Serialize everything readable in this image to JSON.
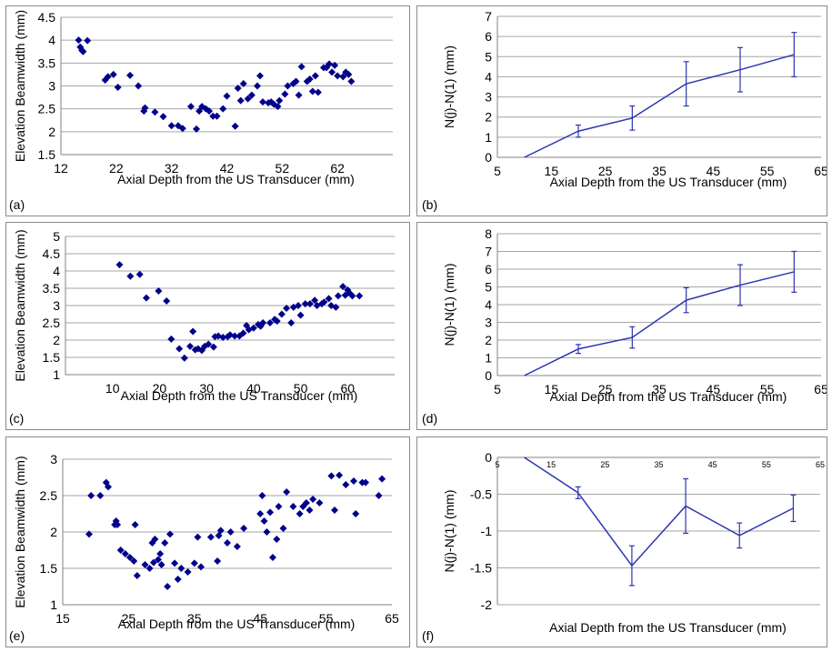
{
  "colors": {
    "series": "#00008b",
    "line": "#2b35b0",
    "grid": "#a6a6a6"
  },
  "chart_data": [
    {
      "panel_label": "(a)",
      "type": "scatter",
      "xlabel": "Axial Depth from the US Transducer (mm)",
      "ylabel": "Elevation Beamwidth (mm)",
      "xlim": [
        12,
        72
      ],
      "ylim": [
        1.5,
        4.5
      ],
      "xticks": [
        "12",
        "22",
        "32",
        "42",
        "52",
        "62"
      ],
      "yticks": [
        "1.5",
        "2",
        "2.5",
        "3",
        "3.5",
        "4",
        "4.5"
      ],
      "grid": "horizontal",
      "points": [
        [
          15.2,
          4.0
        ],
        [
          15.5,
          3.85
        ],
        [
          15.8,
          3.78
        ],
        [
          16.0,
          3.75
        ],
        [
          16.8,
          3.99
        ],
        [
          20.0,
          3.13
        ],
        [
          20.5,
          3.2
        ],
        [
          21.5,
          3.25
        ],
        [
          22.3,
          2.97
        ],
        [
          24.5,
          3.23
        ],
        [
          26.0,
          3.0
        ],
        [
          27.0,
          2.45
        ],
        [
          27.2,
          2.52
        ],
        [
          29.0,
          2.43
        ],
        [
          30.5,
          2.33
        ],
        [
          32.0,
          2.13
        ],
        [
          33.2,
          2.13
        ],
        [
          34.0,
          2.07
        ],
        [
          35.5,
          2.55
        ],
        [
          36.5,
          2.06
        ],
        [
          37.0,
          2.45
        ],
        [
          37.5,
          2.55
        ],
        [
          38.2,
          2.5
        ],
        [
          38.8,
          2.45
        ],
        [
          39.5,
          2.34
        ],
        [
          40.2,
          2.34
        ],
        [
          41.3,
          2.5
        ],
        [
          42.0,
          2.78
        ],
        [
          43.5,
          2.12
        ],
        [
          44.0,
          2.95
        ],
        [
          44.5,
          2.68
        ],
        [
          45.0,
          3.05
        ],
        [
          45.8,
          2.72
        ],
        [
          46.5,
          2.8
        ],
        [
          47.5,
          3.0
        ],
        [
          48.0,
          3.22
        ],
        [
          48.5,
          2.65
        ],
        [
          49.5,
          2.63
        ],
        [
          50.0,
          2.65
        ],
        [
          50.5,
          2.6
        ],
        [
          51.2,
          2.55
        ],
        [
          51.5,
          2.68
        ],
        [
          52.5,
          2.82
        ],
        [
          53.0,
          3.0
        ],
        [
          54.0,
          3.05
        ],
        [
          54.5,
          3.1
        ],
        [
          55.0,
          2.8
        ],
        [
          55.5,
          3.42
        ],
        [
          56.5,
          3.1
        ],
        [
          57.0,
          3.15
        ],
        [
          57.5,
          2.88
        ],
        [
          58.0,
          3.22
        ],
        [
          58.5,
          2.86
        ],
        [
          59.5,
          3.4
        ],
        [
          60.0,
          3.4
        ],
        [
          60.5,
          3.48
        ],
        [
          61.0,
          3.3
        ],
        [
          61.5,
          3.45
        ],
        [
          62.0,
          3.22
        ],
        [
          63.0,
          3.2
        ],
        [
          63.5,
          3.3
        ],
        [
          64.0,
          3.25
        ],
        [
          64.5,
          3.1
        ]
      ]
    },
    {
      "panel_label": "(b)",
      "type": "line",
      "xlabel": "Axial Depth from the US Transducer (mm)",
      "ylabel": "N(j)-N(1) (mm)",
      "xlim": [
        5,
        65
      ],
      "ylim": [
        0,
        7
      ],
      "xticks": [
        "5",
        "15",
        "25",
        "35",
        "45",
        "55",
        "65"
      ],
      "yticks": [
        "0",
        "1",
        "2",
        "3",
        "4",
        "5",
        "6",
        "7"
      ],
      "grid": "horizontal",
      "x": [
        10,
        20,
        30,
        40,
        50,
        60
      ],
      "y": [
        0,
        1.3,
        1.95,
        3.65,
        4.35,
        5.1
      ],
      "error": [
        0,
        0.3,
        0.6,
        1.1,
        1.1,
        1.1
      ]
    },
    {
      "panel_label": "(c)",
      "type": "scatter",
      "xlabel": "Axial Depth from the US Transducer (mm)",
      "ylabel": "Elevation Beamwidth (mm)",
      "xlim": [
        0,
        70
      ],
      "ylim": [
        1,
        5
      ],
      "xticks": [
        "10",
        "20",
        "30",
        "40",
        "50",
        "60"
      ],
      "yticks": [
        "1",
        "1.5",
        "2",
        "2.5",
        "3",
        "3.5",
        "4",
        "4.5",
        "5"
      ],
      "grid": "horizontal",
      "points": [
        [
          11.5,
          4.18
        ],
        [
          13.8,
          3.85
        ],
        [
          15.8,
          3.9
        ],
        [
          17.2,
          3.22
        ],
        [
          19.8,
          3.42
        ],
        [
          21.5,
          3.13
        ],
        [
          22.5,
          2.03
        ],
        [
          24.2,
          1.75
        ],
        [
          25.3,
          1.48
        ],
        [
          26.5,
          1.82
        ],
        [
          27.1,
          2.25
        ],
        [
          27.6,
          1.72
        ],
        [
          28.2,
          1.75
        ],
        [
          29.0,
          1.7
        ],
        [
          29.6,
          1.82
        ],
        [
          30.4,
          1.88
        ],
        [
          31.5,
          1.8
        ],
        [
          31.8,
          2.1
        ],
        [
          32.5,
          2.12
        ],
        [
          33.5,
          2.08
        ],
        [
          34.5,
          2.1
        ],
        [
          35.0,
          2.15
        ],
        [
          36.0,
          2.12
        ],
        [
          37.0,
          2.12
        ],
        [
          37.8,
          2.2
        ],
        [
          38.5,
          2.42
        ],
        [
          39.0,
          2.3
        ],
        [
          40.0,
          2.35
        ],
        [
          41.0,
          2.45
        ],
        [
          41.5,
          2.4
        ],
        [
          42.0,
          2.5
        ],
        [
          43.5,
          2.5
        ],
        [
          44.5,
          2.6
        ],
        [
          45.0,
          2.55
        ],
        [
          46.0,
          2.75
        ],
        [
          47.0,
          2.92
        ],
        [
          48.0,
          2.5
        ],
        [
          48.5,
          2.95
        ],
        [
          49.5,
          3.0
        ],
        [
          50.0,
          2.72
        ],
        [
          51.0,
          3.05
        ],
        [
          52.0,
          3.05
        ],
        [
          53.0,
          3.15
        ],
        [
          53.5,
          3.0
        ],
        [
          54.5,
          3.05
        ],
        [
          55.0,
          3.1
        ],
        [
          56.0,
          3.2
        ],
        [
          56.5,
          3.0
        ],
        [
          57.5,
          2.95
        ],
        [
          58.0,
          3.28
        ],
        [
          59.0,
          3.55
        ],
        [
          59.5,
          3.3
        ],
        [
          60.0,
          3.45
        ],
        [
          60.5,
          3.35
        ],
        [
          61.0,
          3.28
        ],
        [
          62.5,
          3.28
        ]
      ]
    },
    {
      "panel_label": "(d)",
      "type": "line",
      "xlabel": "Axial Depth from the US Transducer (mm)",
      "ylabel": "N(j)-N(1) (mm)",
      "xlim": [
        5,
        65
      ],
      "ylim": [
        0,
        8
      ],
      "xticks": [
        "5",
        "15",
        "25",
        "35",
        "45",
        "55",
        "65"
      ],
      "yticks": [
        "0",
        "1",
        "2",
        "3",
        "4",
        "5",
        "6",
        "7",
        "8"
      ],
      "grid": "horizontal",
      "x": [
        10,
        20,
        30,
        40,
        50,
        60
      ],
      "y": [
        0,
        1.5,
        2.15,
        4.25,
        5.1,
        5.85
      ],
      "error": [
        0,
        0.25,
        0.6,
        0.7,
        1.15,
        1.15
      ]
    },
    {
      "panel_label": "(e)",
      "type": "scatter",
      "xlabel": "Axial Depth from the US Transducer (mm)",
      "ylabel": "Elevation Beamwidth (mm)",
      "xlim": [
        15,
        65
      ],
      "ylim": [
        1,
        3
      ],
      "xticks": [
        "15",
        "25",
        "35",
        "45",
        "55",
        "65"
      ],
      "yticks": [
        "1",
        "1.5",
        "2",
        "2.5",
        "3"
      ],
      "grid": "horizontal",
      "points": [
        [
          19.0,
          1.97
        ],
        [
          19.3,
          2.5
        ],
        [
          20.7,
          2.5
        ],
        [
          21.6,
          2.68
        ],
        [
          21.9,
          2.62
        ],
        [
          22.9,
          2.1
        ],
        [
          23.1,
          2.15
        ],
        [
          23.3,
          2.1
        ],
        [
          23.8,
          1.75
        ],
        [
          24.5,
          1.7
        ],
        [
          25.2,
          1.65
        ],
        [
          25.8,
          1.6
        ],
        [
          26.0,
          2.1
        ],
        [
          26.3,
          1.4
        ],
        [
          27.5,
          1.55
        ],
        [
          28.2,
          1.5
        ],
        [
          28.6,
          1.85
        ],
        [
          28.8,
          1.58
        ],
        [
          29.0,
          1.9
        ],
        [
          29.5,
          1.62
        ],
        [
          29.8,
          1.7
        ],
        [
          30.0,
          1.55
        ],
        [
          30.5,
          1.85
        ],
        [
          30.9,
          1.25
        ],
        [
          31.3,
          1.97
        ],
        [
          32.0,
          1.57
        ],
        [
          32.5,
          1.35
        ],
        [
          33.0,
          1.5
        ],
        [
          34.0,
          1.45
        ],
        [
          35.0,
          1.57
        ],
        [
          35.5,
          1.93
        ],
        [
          36.0,
          1.52
        ],
        [
          37.5,
          1.93
        ],
        [
          38.5,
          1.6
        ],
        [
          38.7,
          1.95
        ],
        [
          39.0,
          2.02
        ],
        [
          40.0,
          1.85
        ],
        [
          40.5,
          2.0
        ],
        [
          41.5,
          1.8
        ],
        [
          42.5,
          2.05
        ],
        [
          45.0,
          2.25
        ],
        [
          45.3,
          2.5
        ],
        [
          45.6,
          2.15
        ],
        [
          46.0,
          2.0
        ],
        [
          46.5,
          2.27
        ],
        [
          46.9,
          1.65
        ],
        [
          47.5,
          1.9
        ],
        [
          47.8,
          2.35
        ],
        [
          48.5,
          2.05
        ],
        [
          49.0,
          2.55
        ],
        [
          50.0,
          2.35
        ],
        [
          51.0,
          2.25
        ],
        [
          51.5,
          2.35
        ],
        [
          52.0,
          2.4
        ],
        [
          52.5,
          2.3
        ],
        [
          53.0,
          2.45
        ],
        [
          54.0,
          2.4
        ],
        [
          55.8,
          2.77
        ],
        [
          56.3,
          2.3
        ],
        [
          57.0,
          2.78
        ],
        [
          58.0,
          2.65
        ],
        [
          59.2,
          2.7
        ],
        [
          59.5,
          2.25
        ],
        [
          60.5,
          2.68
        ],
        [
          61.0,
          2.68
        ],
        [
          63.0,
          2.5
        ],
        [
          63.5,
          2.73
        ]
      ]
    },
    {
      "panel_label": "(f)",
      "type": "line",
      "xlabel": "Axial Depth from the US Transducer (mm)",
      "ylabel": "N(j)-N(1) (mm)",
      "xlim": [
        5,
        65
      ],
      "ylim": [
        -2,
        0
      ],
      "xticks": [
        "5",
        "15",
        "25",
        "35",
        "45",
        "55",
        "65"
      ],
      "yticks": [
        "-2",
        "-1.5",
        "-1",
        "-0.5",
        "0"
      ],
      "grid": "horizontal",
      "x": [
        10,
        20,
        30,
        40,
        50,
        60
      ],
      "y": [
        0,
        -0.48,
        -1.47,
        -0.66,
        -1.06,
        -0.69
      ],
      "error": [
        0,
        0.08,
        0.27,
        0.37,
        0.17,
        0.18
      ]
    }
  ]
}
